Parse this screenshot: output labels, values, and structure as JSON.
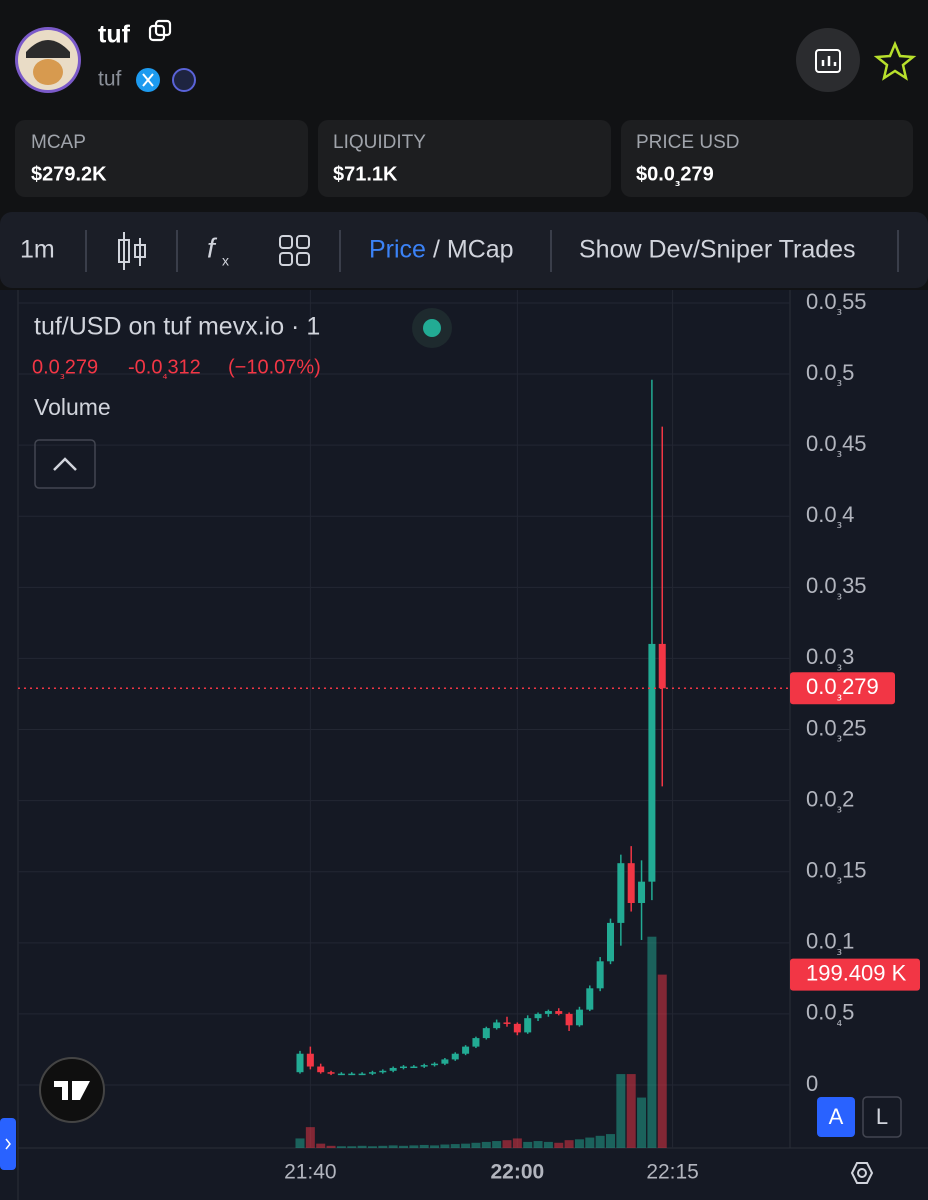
{
  "header": {
    "name": "tuf",
    "handle": "tuf"
  },
  "stats": [
    {
      "label": "MCAP",
      "value": "$279.2K"
    },
    {
      "label": "LIQUIDITY",
      "value": "$71.1K"
    },
    {
      "label": "PRICE USD",
      "value": "$0.0₃279"
    }
  ],
  "toolbar": {
    "interval": "1m",
    "price": "Price",
    "mcap": "/ MCap",
    "dev_trades": "Show Dev/Sniper Trades"
  },
  "legend": {
    "title": "tuf/USD on tuf mevx.io · 1",
    "last": "0.0₃279",
    "change": "-0.0₄312",
    "change_pct": "(−10.07%)",
    "volume": "Volume"
  },
  "buttons": {
    "auto": "A",
    "log": "L"
  },
  "chart_data": {
    "type": "candlestick",
    "categories": [
      null,
      "21:40",
      null,
      null,
      null,
      null,
      null,
      null,
      null,
      null,
      null,
      null,
      null,
      null,
      null,
      null,
      null,
      null,
      null,
      null,
      null,
      "22:00",
      null,
      null,
      null,
      null,
      null,
      null,
      null,
      null,
      null,
      null,
      null,
      null,
      null,
      null,
      "22:15"
    ],
    "open": [
      9e-06,
      2.2e-05,
      1.3e-05,
      9e-06,
      8e-06,
      8e-06,
      8e-06,
      8e-06,
      9e-06,
      1e-05,
      1.2e-05,
      1.3e-05,
      1.3e-05,
      1.4e-05,
      1.5e-05,
      1.8e-05,
      2.2e-05,
      2.7e-05,
      3.3e-05,
      4e-05,
      4.4e-05,
      4.3e-05,
      3.7e-05,
      4.7e-05,
      5e-05,
      5.2e-05,
      5e-05,
      4.2e-05,
      5.3e-05,
      6.8e-05,
      8.7e-05,
      0.000114,
      0.000156,
      0.000128,
      0.000143,
      0.0003102,
      null
    ],
    "high": [
      2.4e-05,
      2.7e-05,
      1.5e-05,
      1e-05,
      9e-06,
      9e-06,
      9e-06,
      1e-05,
      1.1e-05,
      1.3e-05,
      1.4e-05,
      1.4e-05,
      1.5e-05,
      1.6e-05,
      1.9e-05,
      2.3e-05,
      2.8e-05,
      3.4e-05,
      4.1e-05,
      4.6e-05,
      4.8e-05,
      4.4e-05,
      4.9e-05,
      5.1e-05,
      5.3e-05,
      5.4e-05,
      5.1e-05,
      5.5e-05,
      7e-05,
      9e-05,
      0.000117,
      0.000162,
      0.000168,
      0.000158,
      0.000496,
      0.000463,
      null
    ],
    "low": [
      8e-06,
      1.1e-05,
      8e-06,
      7e-06,
      7e-06,
      7e-06,
      7e-06,
      7e-06,
      8e-06,
      9e-06,
      1.1e-05,
      1.2e-05,
      1.2e-05,
      1.3e-05,
      1.4e-05,
      1.7e-05,
      2.1e-05,
      2.6e-05,
      3.2e-05,
      3.9e-05,
      4.1e-05,
      3.5e-05,
      3.6e-05,
      4.5e-05,
      4.8e-05,
      4.9e-05,
      3.8e-05,
      4.1e-05,
      5.2e-05,
      6.6e-05,
      8.5e-05,
      9.8e-05,
      0.000122,
      0.000102,
      0.00013,
      0.00021,
      null
    ],
    "close": [
      2.2e-05,
      1.3e-05,
      9e-06,
      8e-06,
      8e-06,
      8e-06,
      8e-06,
      9e-06,
      1e-05,
      1.2e-05,
      1.3e-05,
      1.3e-05,
      1.4e-05,
      1.5e-05,
      1.8e-05,
      2.2e-05,
      2.7e-05,
      3.3e-05,
      4e-05,
      4.4e-05,
      4.3e-05,
      3.7e-05,
      4.7e-05,
      5e-05,
      5.2e-05,
      5e-05,
      4.2e-05,
      5.3e-05,
      6.8e-05,
      8.7e-05,
      0.000114,
      0.000156,
      0.000128,
      0.000143,
      0.0003102,
      0.000279,
      null
    ],
    "volume": [
      11000,
      24000,
      5000,
      2500,
      2000,
      2000,
      2500,
      2000,
      2500,
      3000,
      2500,
      3000,
      3500,
      3000,
      4000,
      4500,
      5000,
      6000,
      7000,
      8000,
      9000,
      11000,
      7000,
      8000,
      7000,
      6000,
      9000,
      10000,
      12000,
      14000,
      16000,
      85000,
      85000,
      58000,
      243000,
      199409,
      null
    ],
    "up_color": "#22ab94",
    "down_color": "#f23645",
    "ylim": [
      -4.43e-05,
      0.0005591
    ],
    "yticks": [
      0,
      {
        "value": 5e-05,
        "label": "0.0₄5"
      },
      {
        "value": 0.0001,
        "label": "0.0₃1"
      },
      {
        "value": 0.00015,
        "label": "0.0₃15"
      },
      {
        "value": 0.0002,
        "label": "0.0₃2"
      },
      {
        "value": 0.00025,
        "label": "0.0₃25"
      },
      {
        "value": 0.0003,
        "label": "0.0₃3"
      },
      {
        "value": 0.00035,
        "label": "0.0₃35"
      },
      {
        "value": 0.0004,
        "label": "0.0₃4"
      },
      {
        "value": 0.00045,
        "label": "0.0₃45"
      },
      {
        "value": 0.0005,
        "label": "0.0₃5"
      },
      {
        "value": 0.00055,
        "label": "0.0₃55"
      }
    ],
    "volume_ylim": [
      0,
      345000
    ],
    "last_price_label": {
      "value": 0.000279,
      "label": "0.0₃279"
    },
    "last_volume_label": {
      "value": 199409,
      "label": "199.409 K"
    },
    "grid": true
  }
}
